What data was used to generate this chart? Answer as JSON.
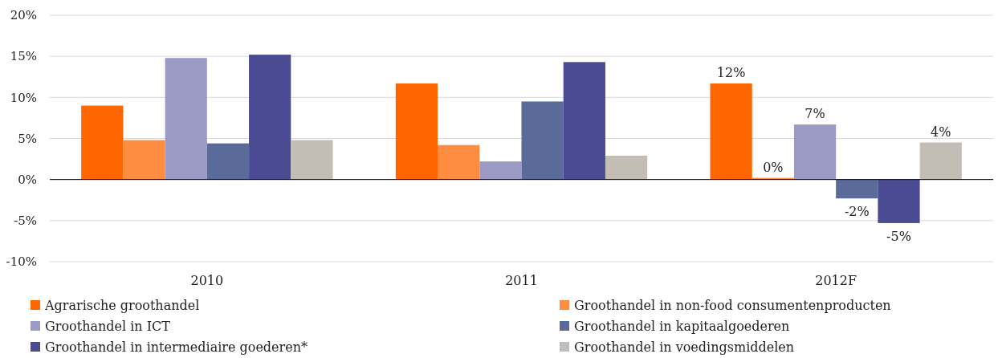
{
  "chart_data": {
    "type": "bar",
    "categories": [
      "2010",
      "2011",
      "2012F"
    ],
    "series": [
      {
        "name": "Agrarische groothandel",
        "color": "#ff6600",
        "values": [
          9.0,
          11.7,
          11.7
        ],
        "value_labels": [
          null,
          null,
          "12%"
        ]
      },
      {
        "name": "Groothandel in non-food consumentenproducten",
        "color": "#ff8c40",
        "values": [
          4.8,
          4.2,
          0.2
        ],
        "value_labels": [
          null,
          null,
          "0%"
        ]
      },
      {
        "name": "Groothandel in ICT",
        "color": "#9b9bc6",
        "values": [
          14.8,
          2.2,
          6.7
        ],
        "value_labels": [
          null,
          null,
          "7%"
        ]
      },
      {
        "name": "Groothandel in kapitaalgoederen",
        "color": "#5a6b9a",
        "values": [
          4.4,
          9.5,
          -2.3
        ],
        "value_labels": [
          null,
          null,
          "-2%"
        ]
      },
      {
        "name": "Groothandel in intermediaire goederen*",
        "color": "#4b4b94",
        "values": [
          15.2,
          14.3,
          -5.3
        ],
        "value_labels": [
          null,
          null,
          "-5%"
        ]
      },
      {
        "name": "Groothandel in voedingsmiddelen",
        "color": "#c4bdb5",
        "values": [
          4.8,
          2.9,
          4.5
        ],
        "value_labels": [
          null,
          null,
          "4%"
        ]
      }
    ],
    "ylim": [
      -10,
      20
    ],
    "yticks": [
      {
        "value": -10,
        "label": "-10%"
      },
      {
        "value": -5,
        "label": "-5%"
      },
      {
        "value": 0,
        "label": "0%"
      },
      {
        "value": 5,
        "label": "5%"
      },
      {
        "value": 10,
        "label": "10%"
      },
      {
        "value": 15,
        "label": "15%"
      },
      {
        "value": 20,
        "label": "20%"
      }
    ],
    "grid": "y",
    "legend": "bottom"
  }
}
